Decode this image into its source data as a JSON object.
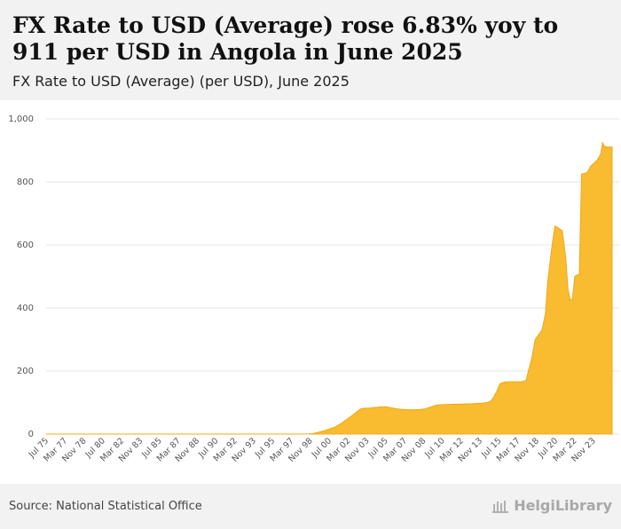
{
  "title": "FX Rate to USD (Average) rose 6.83% yoy to 911 per USD in Angola in June 2025",
  "subtitle": "FX Rate to USD (Average) (per USD), June 2025",
  "source": "Source: National Statistical Office",
  "brand": "HelgiLibrary",
  "colors": {
    "fill": "#f9bb30",
    "stroke": "#f0a91a",
    "grid": "#e4e4e4"
  },
  "chart_data": {
    "type": "area",
    "title": "FX Rate to USD (Average) (per USD), June 2025",
    "xlabel": "",
    "ylabel": "per USD",
    "ylim": [
      0,
      1000
    ],
    "yticks": [
      0,
      200,
      400,
      600,
      800,
      1000
    ],
    "ytick_labels": [
      "0",
      "200",
      "400",
      "600",
      "800",
      "1,000"
    ],
    "xlim": [
      1975.5,
      2025.5
    ],
    "xtick_labels": [
      "Jul 75",
      "Mar 77",
      "Nov 78",
      "Jul 80",
      "Mar 82",
      "Nov 83",
      "Jul 85",
      "Mar 87",
      "Nov 88",
      "Jul 90",
      "Mar 92",
      "Nov 93",
      "Jul 95",
      "Mar 97",
      "Nov 98",
      "Jul 00",
      "Mar 02",
      "Nov 03",
      "Jul 05",
      "Mar 07",
      "Nov 08",
      "Jul 10",
      "Mar 12",
      "Nov 13",
      "Jul 15",
      "Mar 17",
      "Nov 18",
      "Jul 20",
      "Mar 22",
      "Nov 23"
    ],
    "xtick_values": [
      1975.5,
      1977.17,
      1978.83,
      1980.5,
      1982.17,
      1983.83,
      1985.5,
      1987.17,
      1988.83,
      1990.5,
      1992.17,
      1993.83,
      1995.5,
      1997.17,
      1998.83,
      2000.5,
      2002.17,
      2003.83,
      2005.5,
      2007.17,
      2008.83,
      2010.5,
      2012.17,
      2013.83,
      2015.5,
      2017.17,
      2018.83,
      2020.5,
      2022.17,
      2023.83
    ],
    "series": [
      {
        "name": "FX Rate to USD (Average)",
        "x": [
          1975.5,
          1998.5,
          1999.0,
          1999.5,
          2000.0,
          2000.5,
          2001.0,
          2001.5,
          2002.0,
          2002.5,
          2003.0,
          2003.3,
          2003.6,
          2004.0,
          2004.5,
          2005.0,
          2005.5,
          2006.0,
          2006.5,
          2007.0,
          2007.5,
          2008.0,
          2008.5,
          2009.0,
          2009.4,
          2009.8,
          2010.0,
          2010.5,
          2011.0,
          2012.0,
          2013.0,
          2014.0,
          2014.5,
          2014.8,
          2015.0,
          2015.3,
          2015.6,
          2016.0,
          2016.5,
          2017.0,
          2017.5,
          2017.9,
          2018.1,
          2018.4,
          2018.7,
          2019.0,
          2019.3,
          2019.6,
          2019.8,
          2020.0,
          2020.2,
          2020.45,
          2020.7,
          2020.9,
          2021.1,
          2021.4,
          2021.6,
          2021.8,
          2022.0,
          2022.2,
          2022.4,
          2022.6,
          2022.8,
          2023.1,
          2023.3,
          2023.45,
          2023.6,
          2023.9,
          2024.2,
          2024.5,
          2024.65,
          2024.8,
          2025.0,
          2025.2,
          2025.5
        ],
        "y": [
          0,
          0,
          1,
          5,
          10,
          16,
          22,
          32,
          45,
          58,
          72,
          80,
          82,
          82,
          84,
          86,
          87,
          83,
          80,
          78,
          77,
          77,
          78,
          80,
          85,
          90,
          92,
          93,
          94,
          95,
          96,
          98,
          100,
          105,
          115,
          135,
          160,
          165,
          166,
          166,
          166,
          170,
          200,
          240,
          300,
          315,
          330,
          380,
          480,
          540,
          600,
          660,
          655,
          650,
          645,
          560,
          460,
          425,
          430,
          500,
          505,
          505,
          825,
          828,
          830,
          840,
          850,
          860,
          870,
          890,
          925,
          915,
          911,
          911,
          911
        ]
      }
    ]
  }
}
